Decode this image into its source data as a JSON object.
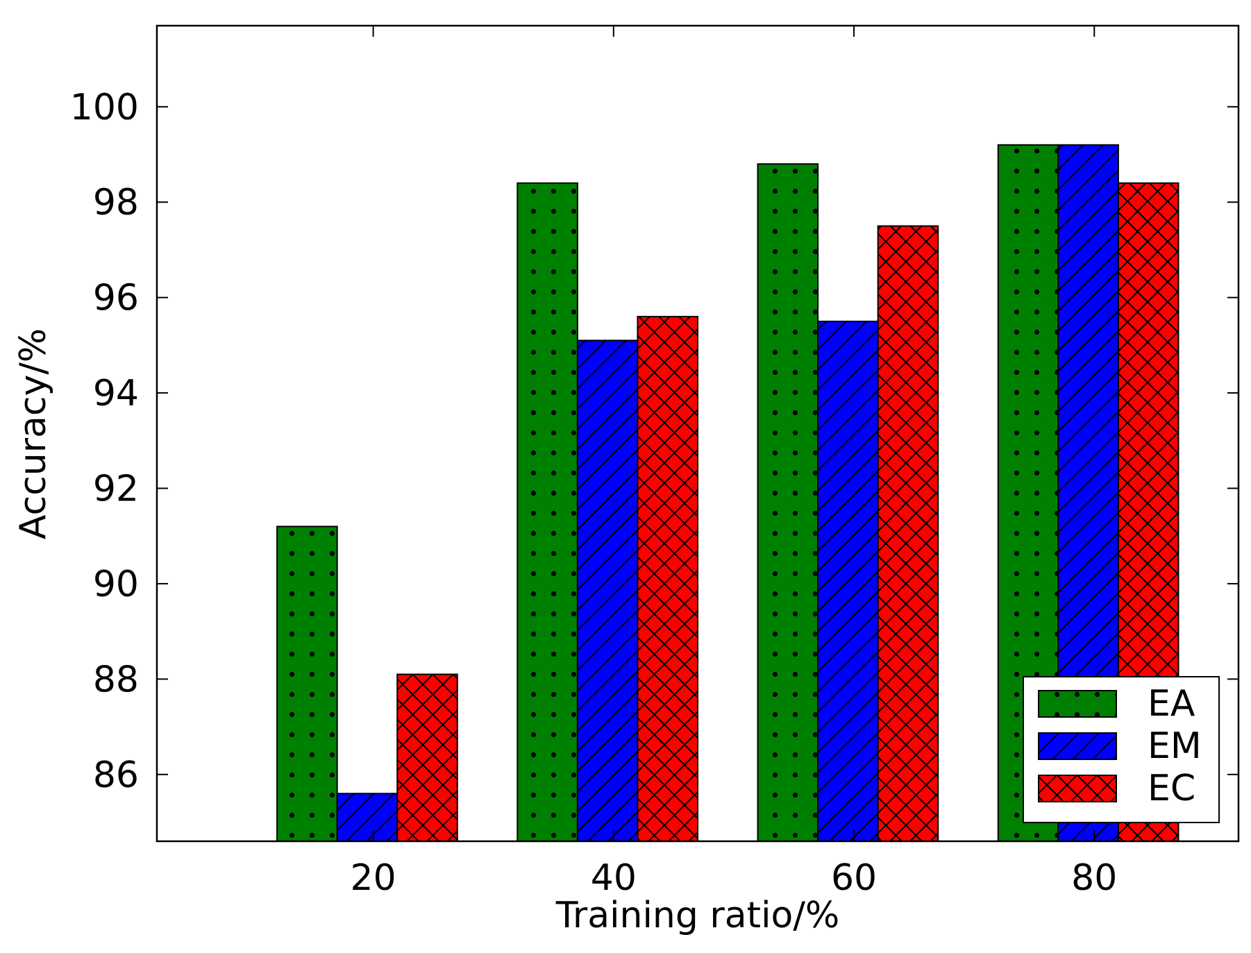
{
  "chart_data": {
    "type": "bar",
    "title": "",
    "xlabel": "Training ratio/%",
    "ylabel": "Accuracy/%",
    "categories": [
      "20",
      "40",
      "60",
      "80"
    ],
    "ylim": [
      84.6,
      101.7
    ],
    "yticks": [
      86,
      88,
      90,
      92,
      94,
      96,
      98,
      100
    ],
    "grid": false,
    "legend_position": "bottom-right",
    "series": [
      {
        "name": "EA",
        "color": "#008000",
        "hatch": "dots",
        "values": [
          91.2,
          98.4,
          98.8,
          99.2
        ]
      },
      {
        "name": "EM",
        "color": "#0000ff",
        "hatch": "diagonal",
        "values": [
          85.6,
          95.1,
          95.5,
          99.2
        ]
      },
      {
        "name": "EC",
        "color": "#ff0000",
        "hatch": "cross",
        "values": [
          88.1,
          95.6,
          97.5,
          98.4
        ]
      }
    ]
  }
}
